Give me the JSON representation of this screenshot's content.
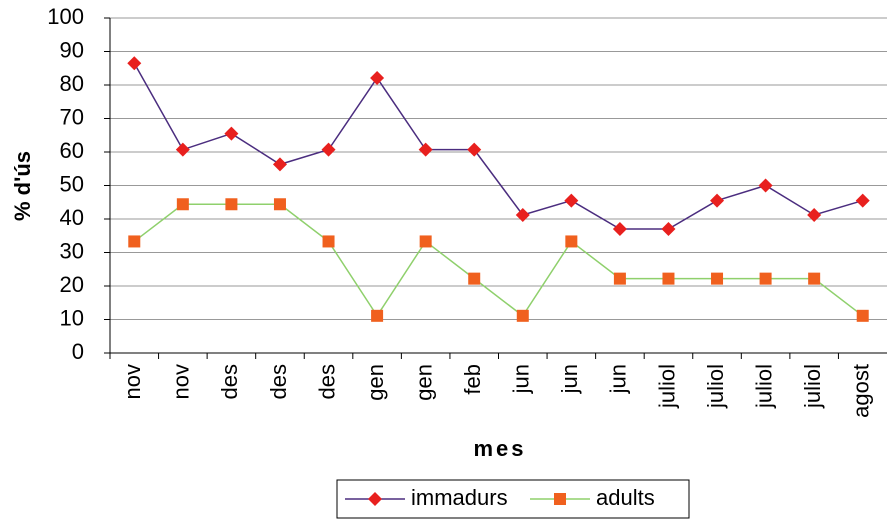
{
  "chart_data": {
    "type": "line",
    "x_label": "mes",
    "y_label": "% d'ús",
    "categories": [
      "nov",
      "nov",
      "des",
      "des",
      "des",
      "gen",
      "gen",
      "feb",
      "jun",
      "jun",
      "jun",
      "juliol",
      "juliol",
      "juliol",
      "juliol",
      "agost"
    ],
    "series": [
      {
        "name": "immadurs",
        "color": "#4b2d7f",
        "marker_color": "#e8201e",
        "marker": "diamond",
        "values": [
          86.5,
          60.7,
          65.5,
          56.3,
          60.7,
          82.1,
          60.7,
          60.7,
          41.2,
          45.5,
          37,
          37,
          45.5,
          50,
          41.2,
          45.5
        ]
      },
      {
        "name": "adults",
        "color": "#8fd06c",
        "marker_color": "#f0601e",
        "marker": "square",
        "values": [
          33.3,
          44.4,
          44.4,
          44.4,
          33.3,
          11.1,
          33.3,
          22.2,
          11.1,
          33.3,
          22.2,
          22.2,
          22.2,
          22.2,
          22.2,
          11.1
        ]
      }
    ],
    "ylim": [
      0,
      100
    ],
    "yticks": [
      0,
      10,
      20,
      30,
      40,
      50,
      60,
      70,
      80,
      90,
      100
    ],
    "grid": true,
    "legend": "bottom"
  }
}
